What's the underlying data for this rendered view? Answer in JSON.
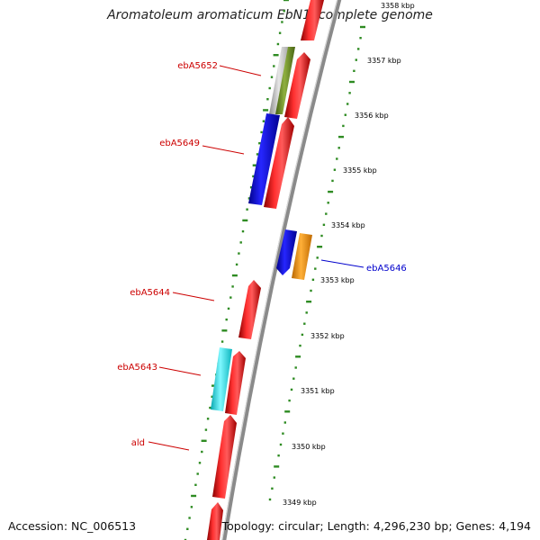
{
  "title": "Aromatoleum aromaticum EbN1, complete genome",
  "accession": "Accession: NC_006513",
  "summary": "Topology: circular; Length: 4,296,230 bp; Genes: 4,194",
  "scale_ticks": [
    "3349 kbp",
    "3350 kbp",
    "3351 kbp",
    "3352 kbp",
    "3353 kbp",
    "3354 kbp",
    "3355 kbp",
    "3356 kbp",
    "3357 kbp",
    "3358 kbp"
  ],
  "gene_labels": [
    {
      "text": "ebA5652",
      "color": "#cc0000"
    },
    {
      "text": "ebA5649",
      "color": "#cc0000"
    },
    {
      "text": "ebA5646",
      "color": "#0000cc"
    },
    {
      "text": "ebA5644",
      "color": "#cc0000"
    },
    {
      "text": "ebA5643",
      "color": "#cc0000"
    },
    {
      "text": "ald",
      "color": "#cc0000"
    }
  ],
  "colors": {
    "red": "#e8141e",
    "blue": "#1010dd",
    "orange": "#f5960f",
    "olive": "#6b8e23",
    "gray": "#c0c0c0",
    "cyan": "#1de0e8",
    "backbone": "#8a8a8a",
    "tick": "#2e8b22"
  }
}
